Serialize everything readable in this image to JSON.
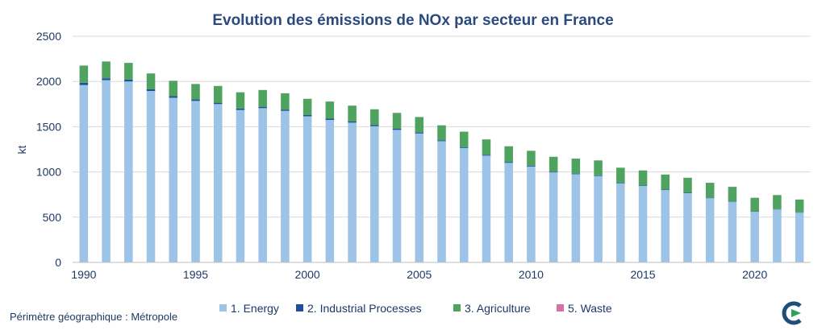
{
  "chart_data": {
    "type": "bar",
    "stacked": true,
    "title": "Evolution des émissions de NOx par secteur en France",
    "xlabel": "",
    "ylabel": "kt",
    "ylim": [
      0,
      2500
    ],
    "yticks": [
      "0",
      "500",
      "1000",
      "1500",
      "2000",
      "2500"
    ],
    "xtick_labels": [
      "1990",
      "1995",
      "2000",
      "2005",
      "2010",
      "2015",
      "2020"
    ],
    "grid": true,
    "legend_position": "bottom",
    "categories": [
      1990,
      1991,
      1992,
      1993,
      1994,
      1995,
      1996,
      1997,
      1998,
      1999,
      2000,
      2001,
      2002,
      2003,
      2004,
      2005,
      2006,
      2007,
      2008,
      2009,
      2010,
      2011,
      2012,
      2013,
      2014,
      2015,
      2016,
      2017,
      2018,
      2019,
      2020,
      2021,
      2022
    ],
    "series": [
      {
        "name": "1. Energy",
        "color": "#9dc3e6",
        "values": [
          1960,
          2015,
          2000,
          1895,
          1820,
          1785,
          1750,
          1685,
          1705,
          1675,
          1615,
          1575,
          1545,
          1505,
          1465,
          1425,
          1340,
          1265,
          1180,
          1100,
          1060,
          995,
          975,
          955,
          875,
          845,
          800,
          765,
          710,
          670,
          560,
          585,
          550
        ]
      },
      {
        "name": "2.  Industrial Processes",
        "color": "#1f4e9c",
        "values": [
          25,
          20,
          20,
          18,
          17,
          16,
          15,
          15,
          15,
          14,
          13,
          13,
          12,
          12,
          12,
          11,
          10,
          10,
          9,
          8,
          8,
          7,
          7,
          7,
          6,
          6,
          6,
          5,
          5,
          5,
          4,
          4,
          4
        ]
      },
      {
        "name": "3.  Agriculture",
        "color": "#4ea45f",
        "values": [
          190,
          185,
          185,
          175,
          170,
          170,
          185,
          180,
          185,
          180,
          180,
          190,
          175,
          175,
          175,
          170,
          165,
          170,
          170,
          175,
          165,
          165,
          165,
          165,
          165,
          165,
          165,
          165,
          165,
          160,
          150,
          155,
          140
        ]
      },
      {
        "name": "5.  Waste",
        "color": "#d670a8",
        "values": [
          1,
          1,
          1,
          1,
          1,
          1,
          1,
          1,
          1,
          1,
          1,
          1,
          1,
          1,
          1,
          1,
          1,
          1,
          1,
          1,
          1,
          1,
          1,
          1,
          1,
          1,
          1,
          1,
          1,
          1,
          1,
          1,
          1
        ]
      }
    ]
  },
  "footnote": "Périmètre géographique : Métropole",
  "logo": {
    "icon": "citepa-logo-icon",
    "colors": [
      "#1f4e79",
      "#2e9e5b"
    ]
  }
}
